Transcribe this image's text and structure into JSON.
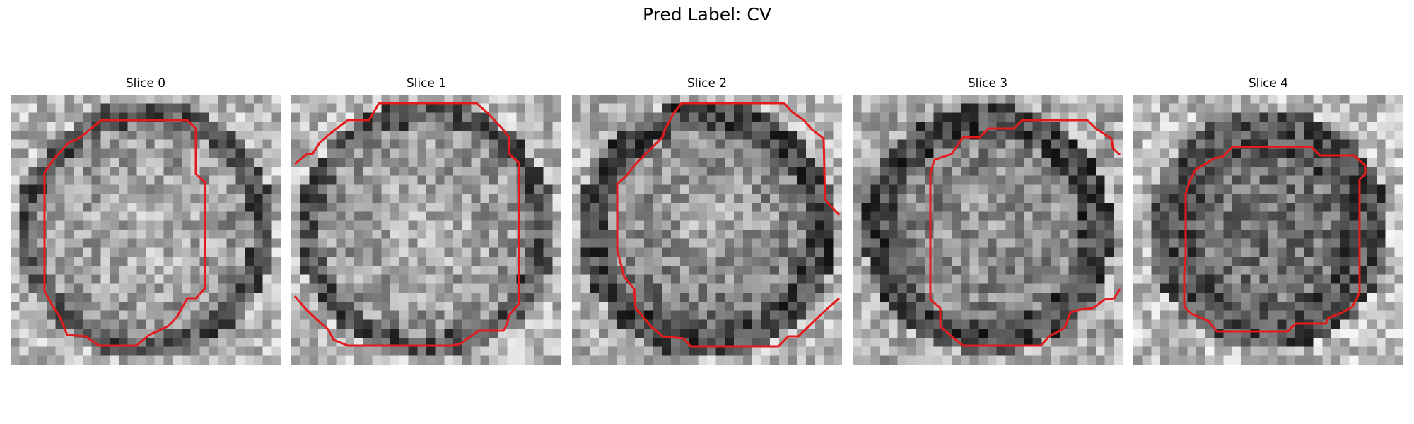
{
  "figure": {
    "suptitle": "Pred Label: CV"
  },
  "panels": [
    {
      "title": "Slice 0",
      "seed": 11,
      "contrast": "bright-center"
    },
    {
      "title": "Slice 1",
      "seed": 23,
      "contrast": "bright-center"
    },
    {
      "title": "Slice 2",
      "seed": 37,
      "contrast": "dark-bottom"
    },
    {
      "title": "Slice 3",
      "seed": 51,
      "contrast": "mixed"
    },
    {
      "title": "Slice 4",
      "seed": 67,
      "contrast": "dark-ring"
    }
  ],
  "colors": {
    "contour": "#e41a1c",
    "background": "#ffffff"
  },
  "image": {
    "colormap": "gray",
    "grid_size": 30
  }
}
